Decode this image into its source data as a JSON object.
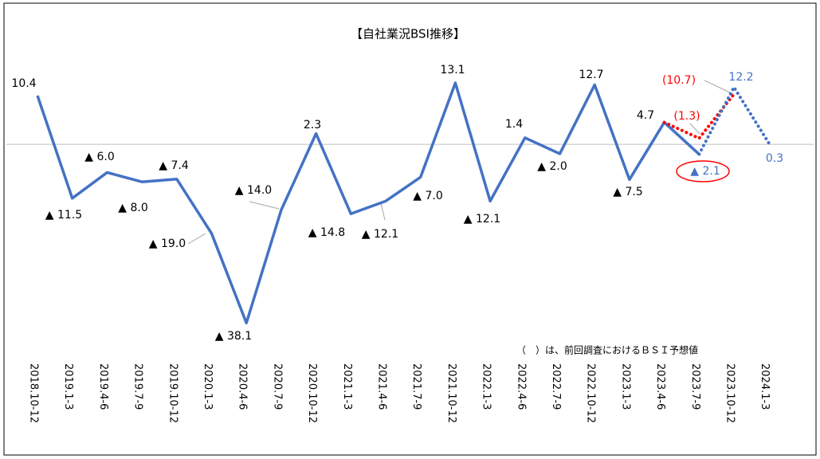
{
  "chart_data": {
    "type": "line",
    "title": "【自社業況BSI推移】",
    "note": "（　）は、前回調査におけるＢＳＩ予想値",
    "categories": [
      "2018.10-12",
      "2019.1-3",
      "2019.4-6",
      "2019.7-9",
      "2019.10-12",
      "2020.1-3",
      "2020.4-6",
      "2020.7-9",
      "2020.10-12",
      "2021.1-3",
      "2021.4-6",
      "2021.7-9",
      "2021.10-12",
      "2022.1-3",
      "2022.4-6",
      "2022.7-9",
      "2022.10-12",
      "2023.1-3",
      "2023.4-6",
      "2023.7-9",
      "2023.10-12",
      "2024.1-3"
    ],
    "ylim": [
      -44,
      24
    ],
    "series": [
      {
        "color": "#4472c4",
        "values": [
          10.4,
          -11.5,
          -6.0,
          -8.0,
          -7.4,
          -19.0,
          -38.1,
          -14.0,
          2.3,
          -14.8,
          -12.1,
          -7.0,
          13.1,
          -12.1,
          1.4,
          -2.0,
          12.7,
          -7.5,
          4.7,
          -2.1,
          null,
          null
        ],
        "value_labels": [
          "10.4",
          "▲ 11.5",
          "▲ 6.0",
          "▲ 8.0",
          "▲ 7.4",
          "▲ 19.0",
          "▲ 38.1",
          "▲ 14.0",
          "2.3",
          "▲ 14.8",
          "▲ 12.1",
          "▲ 7.0",
          "13.1",
          "▲ 12.1",
          "1.4",
          "▲ 2.0",
          "12.7",
          "▲ 7.5",
          "4.7",
          "▲ 2.1",
          null,
          null
        ]
      },
      {
        "color": "#ff0000",
        "values": [
          null,
          null,
          null,
          null,
          null,
          null,
          null,
          null,
          null,
          null,
          null,
          null,
          null,
          null,
          null,
          null,
          null,
          null,
          4.7,
          1.3,
          10.7,
          null
        ],
        "value_labels": [
          null,
          null,
          null,
          null,
          null,
          null,
          null,
          null,
          null,
          null,
          null,
          null,
          null,
          null,
          null,
          null,
          null,
          null,
          null,
          "(1.3)",
          "(10.7)",
          null
        ]
      },
      {
        "color": "#4472c4",
        "values": [
          null,
          null,
          null,
          null,
          null,
          null,
          null,
          null,
          null,
          null,
          null,
          null,
          null,
          null,
          null,
          null,
          null,
          null,
          null,
          -2.1,
          12.2,
          0.3
        ],
        "value_labels": [
          null,
          null,
          null,
          null,
          null,
          null,
          null,
          null,
          null,
          null,
          null,
          null,
          null,
          null,
          null,
          null,
          null,
          null,
          null,
          null,
          "12.2",
          "0.3"
        ]
      }
    ]
  }
}
